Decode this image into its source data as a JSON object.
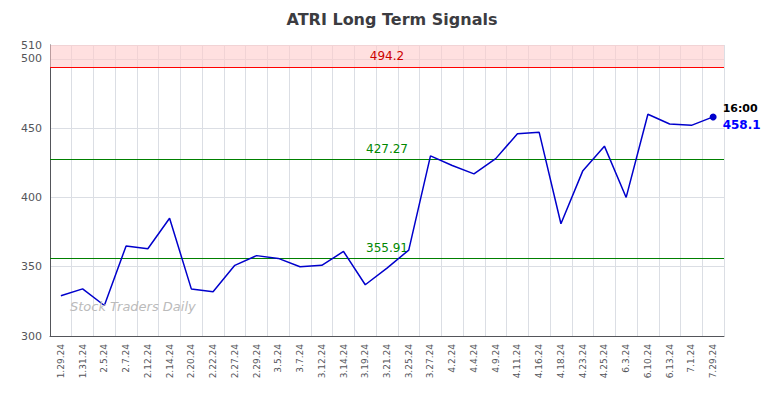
{
  "chart_data": {
    "type": "line",
    "title": "ATRI Long Term Signals",
    "categories": [
      "1.29.24",
      "1.31.24",
      "2.5.24",
      "2.7.24",
      "2.12.24",
      "2.14.24",
      "2.20.24",
      "2.22.24",
      "2.27.24",
      "2.29.24",
      "3.5.24",
      "3.7.24",
      "3.12.24",
      "3.14.24",
      "3.19.24",
      "3.21.24",
      "3.25.24",
      "3.27.24",
      "4.2.24",
      "4.4.24",
      "4.9.24",
      "4.11.24",
      "4.16.24",
      "4.18.24",
      "4.23.24",
      "4.25.24",
      "6.3.24",
      "6.10.24",
      "6.13.24",
      "7.1.24",
      "7.29.24"
    ],
    "values": [
      329,
      334,
      322,
      365,
      363,
      385,
      334,
      332,
      351,
      358,
      356,
      350,
      351,
      361,
      337,
      349,
      362,
      430,
      423,
      417,
      428,
      446,
      447,
      381,
      419,
      437,
      400,
      460,
      453,
      452,
      458.1
    ],
    "color": "#0000cc",
    "ylim": [
      300,
      510
    ],
    "yticks": [
      300,
      350,
      400,
      450,
      500
    ],
    "grid": true,
    "reference_lines": [
      {
        "value": 494.2,
        "label": "494.2",
        "color": "#ff0000",
        "label_color": "#cc0000",
        "band_color": "#ffcccc"
      },
      {
        "value": 427.27,
        "label": "427.27",
        "color": "#008000",
        "label_color": "#008800"
      },
      {
        "value": 355.91,
        "label": "355.91",
        "color": "#008000",
        "label_color": "#008800"
      }
    ],
    "annotations": [
      {
        "text": "16:00",
        "color": "#000000"
      },
      {
        "text": "458.1",
        "color": "#0000ff"
      }
    ],
    "watermark": {
      "text": "Stock Traders Daily",
      "color": "#bbbbbb"
    }
  }
}
